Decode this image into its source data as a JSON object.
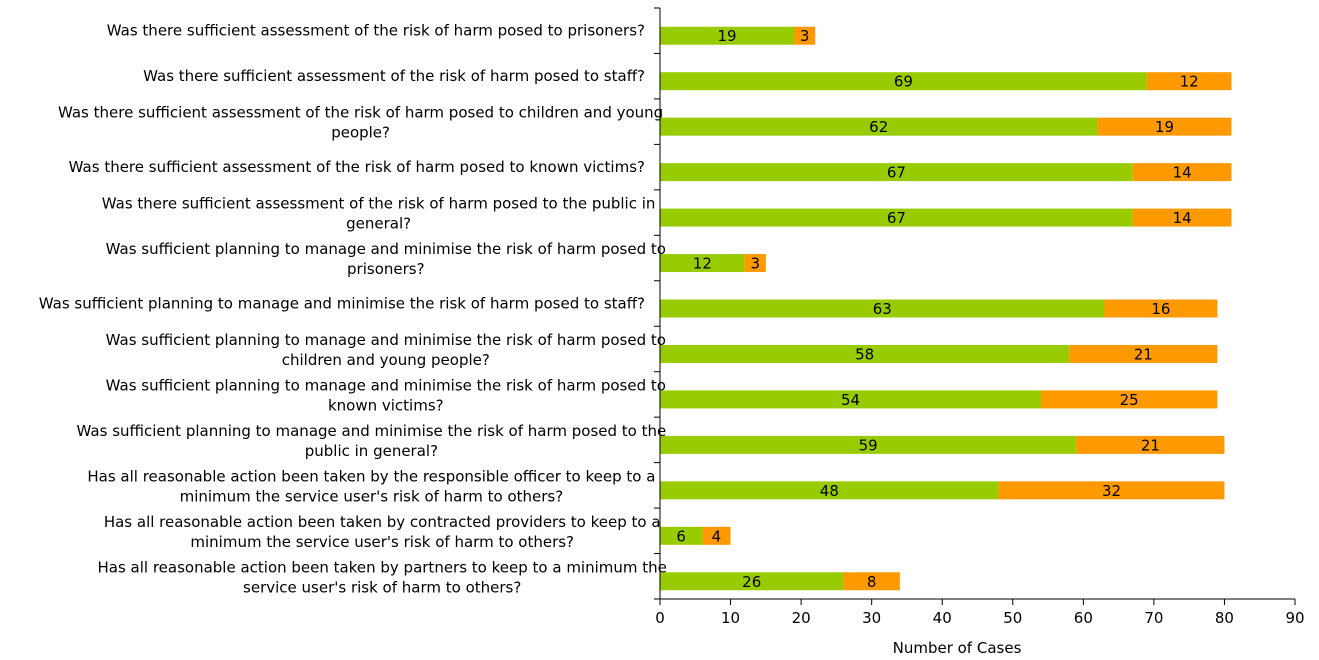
{
  "chart_data": {
    "type": "bar",
    "orientation": "horizontal",
    "stacked": true,
    "categories": [
      [
        "Was there sufficient assessment of the risk of harm posed to prisoners?"
      ],
      [
        "Was there sufficient assessment of the risk of harm posed to staff?"
      ],
      [
        "Was there sufficient assessment of the risk of harm posed to children and young",
        "people?"
      ],
      [
        "Was there sufficient assessment of the risk of harm posed to known victims?"
      ],
      [
        "Was there sufficient assessment of the risk of harm posed to the public in",
        "general?"
      ],
      [
        "Was sufficient planning to manage and minimise the risk of harm posed to",
        "prisoners?"
      ],
      [
        "Was sufficient planning to manage and minimise the risk of harm posed to staff?"
      ],
      [
        "Was sufficient planning to manage and minimise the risk of harm posed to",
        "children and young people?"
      ],
      [
        "Was sufficient planning to manage and minimise the risk of harm posed to",
        "known victims?"
      ],
      [
        "Was sufficient planning to manage and minimise the risk of harm posed to the",
        "public in general?"
      ],
      [
        "Has all reasonable action been taken by the responsible officer to keep to a",
        "minimum the service user's risk of harm to others?"
      ],
      [
        "Has all reasonable action been taken by contracted providers to keep to a",
        "minimum the service user's risk of harm to others?"
      ],
      [
        "Has all reasonable action been taken by partners to keep to a minimum the",
        "service user's risk of harm to others?"
      ]
    ],
    "series": [
      {
        "color": "#99cc00",
        "values": [
          19,
          69,
          62,
          67,
          67,
          12,
          63,
          58,
          54,
          59,
          48,
          6,
          26
        ]
      },
      {
        "color": "#ff9900",
        "values": [
          3,
          12,
          19,
          14,
          14,
          3,
          16,
          21,
          25,
          21,
          32,
          4,
          8
        ]
      }
    ],
    "xlabel": "Number of Cases",
    "xlim": [
      0,
      90
    ],
    "xticks": [
      0,
      10,
      20,
      30,
      40,
      50,
      60,
      70,
      80,
      90
    ],
    "grid": false,
    "legend": "none"
  }
}
